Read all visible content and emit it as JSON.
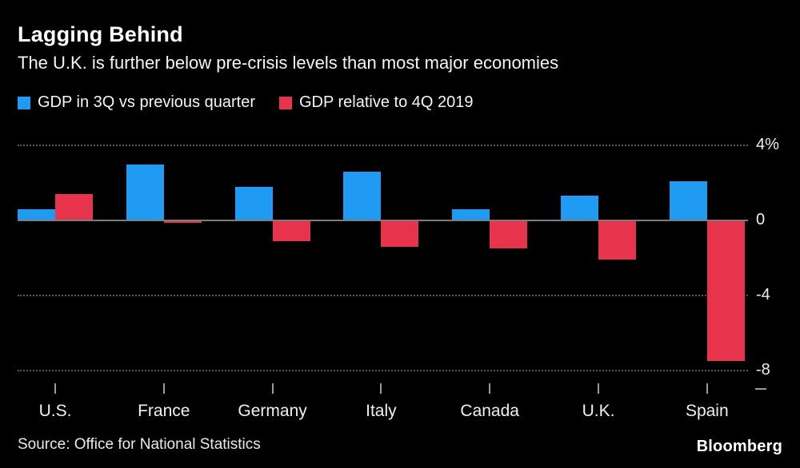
{
  "header": {
    "title": "Lagging Behind",
    "subtitle": "The U.K. is further below pre-crisis levels than most major economies"
  },
  "legend": [
    {
      "label": "GDP in 3Q vs previous quarter",
      "color": "#1f9bf3"
    },
    {
      "label": "GDP relative to 4Q 2019",
      "color": "#e8334d"
    }
  ],
  "chart_data": {
    "type": "bar",
    "categories": [
      "U.S.",
      "France",
      "Germany",
      "Italy",
      "Canada",
      "U.K.",
      "Spain"
    ],
    "series": [
      {
        "name": "GDP in 3Q vs previous quarter",
        "color": "#1f9bf3",
        "values": [
          0.6,
          3.0,
          1.8,
          2.6,
          0.6,
          1.3,
          2.1
        ]
      },
      {
        "name": "GDP relative to 4Q 2019",
        "color": "#e8334d",
        "values": [
          1.4,
          -0.1,
          -1.1,
          -1.4,
          -1.5,
          -2.1,
          -7.5
        ]
      }
    ],
    "ylim": [
      -8,
      4
    ],
    "yticks": [
      {
        "value": 4,
        "label": "4%"
      },
      {
        "value": 0,
        "label": "0"
      },
      {
        "value": -4,
        "label": "-4"
      },
      {
        "value": -8,
        "label": "-8"
      }
    ],
    "grid": "horizontal-dotted",
    "legend_position": "top",
    "background": "#000000"
  },
  "footer": {
    "source": "Source: Office for National Statistics",
    "brand": "Bloomberg"
  }
}
